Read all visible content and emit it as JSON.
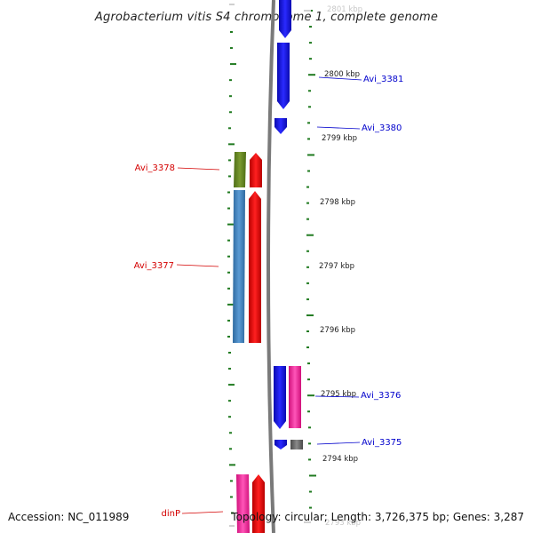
{
  "title": "Agrobacterium vitis S4 chromosome 1, complete genome",
  "footer": {
    "accession": "Accession: NC_011989",
    "summary": "Topology: circular; Length: 3,726,375 bp; Genes: 3,287"
  },
  "ruler": {
    "labels": [
      {
        "text": "2801 kbp",
        "faint": true
      },
      {
        "text": "2800 kbp",
        "faint": false
      },
      {
        "text": "2799 kbp",
        "faint": false
      },
      {
        "text": "2798 kbp",
        "faint": false
      },
      {
        "text": "2797 kbp",
        "faint": false
      },
      {
        "text": "2796 kbp",
        "faint": false
      },
      {
        "text": "2795 kbp",
        "faint": false
      },
      {
        "text": "2794 kbp",
        "faint": false
      },
      {
        "text": "2793 kbp",
        "faint": true
      }
    ]
  },
  "genes": [
    {
      "name": "Avi_3381",
      "strand": "+",
      "color": "#0000cc",
      "label_side": "right"
    },
    {
      "name": "Avi_3380",
      "strand": "+",
      "color": "#0000cc",
      "label_side": "right"
    },
    {
      "name": "Avi_3378",
      "strand": "-",
      "color": "#d40000",
      "label_side": "left"
    },
    {
      "name": "Avi_3377",
      "strand": "-",
      "color": "#d40000",
      "label_side": "left"
    },
    {
      "name": "Avi_3376",
      "strand": "+",
      "color": "#0000cc",
      "label_side": "right"
    },
    {
      "name": "Avi_3375",
      "strand": "+",
      "color": "#0000cc",
      "label_side": "right"
    },
    {
      "name": "dinP",
      "strand": "-",
      "color": "#d40000",
      "label_side": "left"
    }
  ],
  "colors": {
    "ruler_ticks": "#1f7a1f",
    "backbone": "#7a7a7a",
    "forward_cds": "#1010ee",
    "reverse_cds": "#ee0a0a",
    "cog_blue": "#4a86c0",
    "cog_green": "#6a8a2a",
    "cog_pink": "#ff3aa6",
    "cog_gray": "#707070"
  }
}
